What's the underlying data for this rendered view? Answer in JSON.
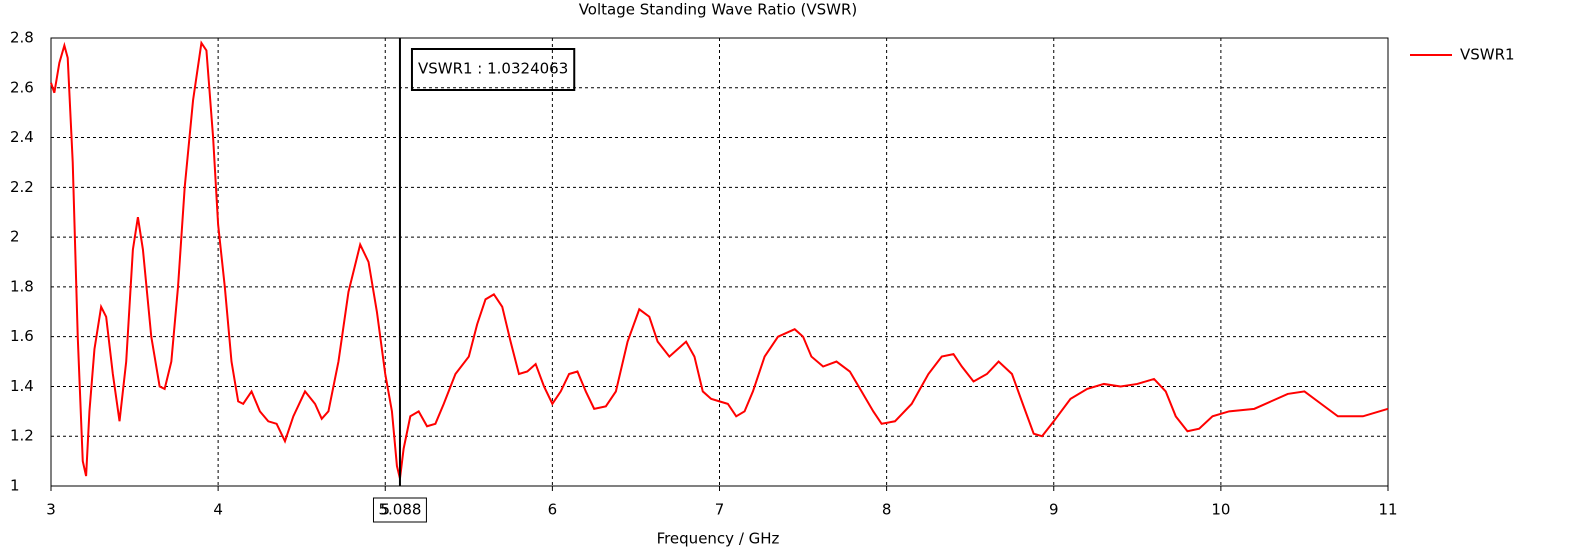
{
  "chart_data": {
    "type": "line",
    "title": "Voltage Standing Wave Ratio (VSWR)",
    "x_label": "Frequency / GHz",
    "x": [
      3.0,
      3.02,
      3.05,
      3.08,
      3.1,
      3.13,
      3.16,
      3.19,
      3.21,
      3.23,
      3.26,
      3.3,
      3.33,
      3.37,
      3.41,
      3.45,
      3.49,
      3.52,
      3.55,
      3.6,
      3.65,
      3.68,
      3.72,
      3.76,
      3.8,
      3.85,
      3.9,
      3.93,
      3.97,
      4.0,
      4.04,
      4.08,
      4.12,
      4.15,
      4.2,
      4.25,
      4.3,
      4.35,
      4.4,
      4.45,
      4.52,
      4.58,
      4.62,
      4.66,
      4.72,
      4.78,
      4.85,
      4.9,
      4.95,
      5.0,
      5.04,
      5.07,
      5.088,
      5.11,
      5.15,
      5.2,
      5.25,
      5.3,
      5.35,
      5.42,
      5.5,
      5.55,
      5.6,
      5.65,
      5.7,
      5.75,
      5.8,
      5.85,
      5.9,
      5.95,
      6.0,
      6.05,
      6.1,
      6.15,
      6.2,
      6.25,
      6.32,
      6.38,
      6.45,
      6.52,
      6.58,
      6.63,
      6.7,
      6.75,
      6.8,
      6.85,
      6.9,
      6.95,
      7.0,
      7.05,
      7.1,
      7.15,
      7.2,
      7.27,
      7.35,
      7.45,
      7.5,
      7.55,
      7.62,
      7.7,
      7.78,
      7.85,
      7.92,
      7.97,
      8.05,
      8.15,
      8.25,
      8.33,
      8.4,
      8.45,
      8.52,
      8.6,
      8.67,
      8.75,
      8.82,
      8.88,
      8.93,
      9.0,
      9.1,
      9.2,
      9.3,
      9.4,
      9.5,
      9.6,
      9.67,
      9.73,
      9.8,
      9.87,
      9.95,
      10.05,
      10.2,
      10.3,
      10.4,
      10.5,
      10.6,
      10.7,
      10.85,
      11.0
    ],
    "series": [
      {
        "name": "VSWR1",
        "color": "#ff0000",
        "values": [
          2.62,
          2.58,
          2.7,
          2.77,
          2.72,
          2.3,
          1.6,
          1.1,
          1.04,
          1.3,
          1.55,
          1.72,
          1.68,
          1.45,
          1.26,
          1.5,
          1.95,
          2.08,
          1.95,
          1.6,
          1.4,
          1.39,
          1.5,
          1.8,
          2.2,
          2.55,
          2.78,
          2.75,
          2.4,
          2.05,
          1.8,
          1.5,
          1.34,
          1.33,
          1.38,
          1.3,
          1.26,
          1.25,
          1.18,
          1.28,
          1.38,
          1.33,
          1.27,
          1.3,
          1.5,
          1.78,
          1.97,
          1.9,
          1.7,
          1.45,
          1.3,
          1.08,
          1.03,
          1.15,
          1.28,
          1.3,
          1.24,
          1.25,
          1.33,
          1.45,
          1.52,
          1.65,
          1.75,
          1.77,
          1.72,
          1.58,
          1.45,
          1.46,
          1.49,
          1.4,
          1.33,
          1.38,
          1.45,
          1.46,
          1.38,
          1.31,
          1.32,
          1.38,
          1.58,
          1.71,
          1.68,
          1.58,
          1.52,
          1.55,
          1.58,
          1.52,
          1.38,
          1.35,
          1.34,
          1.33,
          1.28,
          1.3,
          1.38,
          1.52,
          1.6,
          1.63,
          1.6,
          1.52,
          1.48,
          1.5,
          1.46,
          1.38,
          1.3,
          1.25,
          1.26,
          1.33,
          1.45,
          1.52,
          1.53,
          1.48,
          1.42,
          1.45,
          1.5,
          1.45,
          1.32,
          1.21,
          1.2,
          1.26,
          1.35,
          1.39,
          1.41,
          1.4,
          1.41,
          1.43,
          1.38,
          1.28,
          1.22,
          1.23,
          1.28,
          1.3,
          1.31,
          1.34,
          1.37,
          1.38,
          1.33,
          1.28,
          1.28,
          1.31
        ]
      }
    ],
    "xlim": [
      3,
      11
    ],
    "ylim": [
      1,
      2.8
    ],
    "xticks": [
      3,
      4,
      5,
      6,
      7,
      8,
      9,
      10,
      11
    ],
    "yticks": [
      1,
      1.2,
      1.4,
      1.6,
      1.8,
      2,
      2.2,
      2.4,
      2.6,
      2.8
    ],
    "grid": true,
    "legend": "right",
    "marker_x": 5.088,
    "annotation": "VSWR1 : 1.0324063"
  }
}
